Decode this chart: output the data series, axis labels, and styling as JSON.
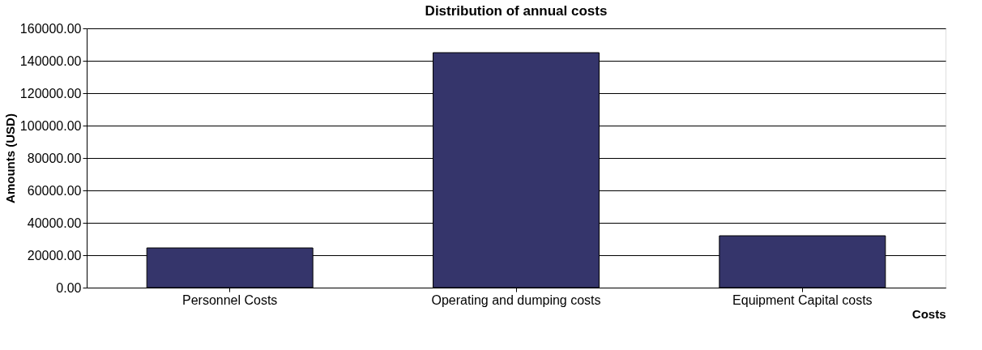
{
  "chart_data": {
    "type": "bar",
    "title": "Distribution of annual costs",
    "xlabel": "Costs",
    "ylabel": "Amounts (USD)",
    "categories": [
      "Personnel Costs",
      "Operating and dumping costs",
      "Equipment Capital costs"
    ],
    "values": [
      24500,
      145000,
      32000
    ],
    "color": "#35356b",
    "ylim": [
      0,
      160000
    ],
    "yticks": [
      {
        "value": 0,
        "label": "0.00"
      },
      {
        "value": 20000,
        "label": "20000.00"
      },
      {
        "value": 40000,
        "label": "40000.00"
      },
      {
        "value": 60000,
        "label": "60000.00"
      },
      {
        "value": 80000,
        "label": "80000.00"
      },
      {
        "value": 100000,
        "label": "100000.00"
      },
      {
        "value": 120000,
        "label": "120000.00"
      },
      {
        "value": 140000,
        "label": "140000.00"
      },
      {
        "value": 160000,
        "label": "160000.00"
      }
    ],
    "grid": "y"
  }
}
